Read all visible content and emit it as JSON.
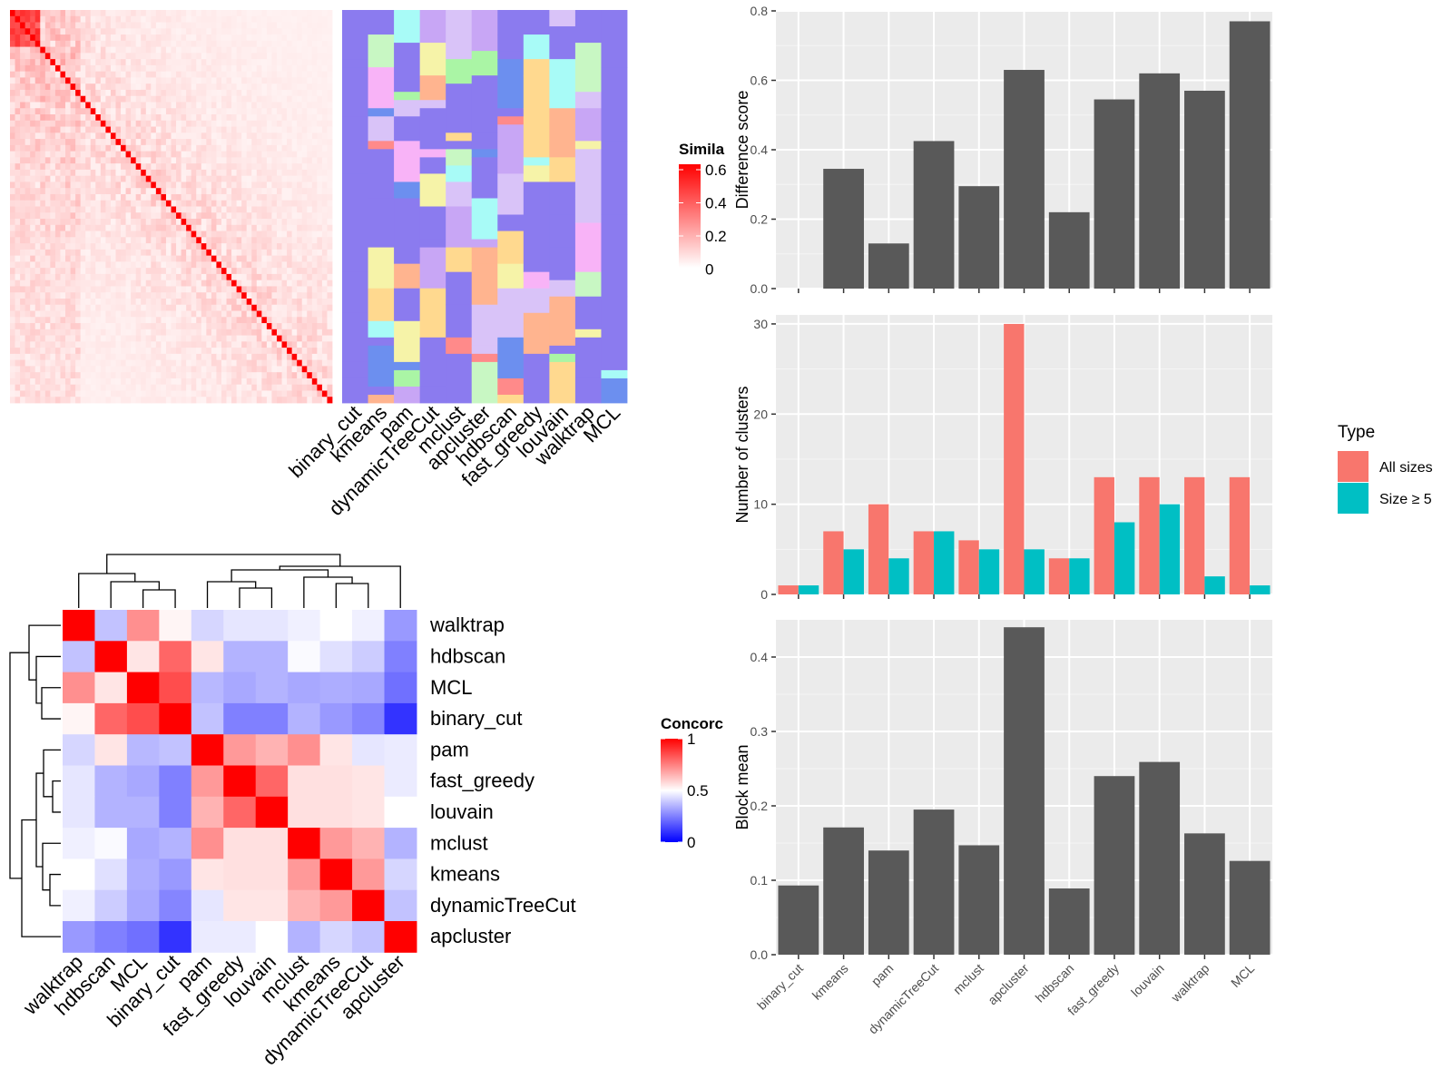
{
  "colors": {
    "panel_bg": "#EBEBEB",
    "grid_major": "#FFFFFF",
    "bar_fill": "#595959",
    "all_sizes": "#F8766D",
    "size_ge_5": "#00BFC4",
    "similarity_low": "#FFFFFF",
    "similarity_high": "#FF0000",
    "concordance_low": "#0000FF",
    "concordance_mid": "#FFFFFF",
    "concordance_high": "#FF0000",
    "default_cluster": "#8B7BEF"
  },
  "methods_bar_order": [
    "binary_cut",
    "kmeans",
    "pam",
    "dynamicTreeCut",
    "mclust",
    "apcluster",
    "hdbscan",
    "fast_greedy",
    "louvain",
    "walktrap",
    "MCL"
  ],
  "similarity_legend": {
    "title": "Simila",
    "ticks": [
      "0.6",
      "0.4",
      "0.2",
      "0"
    ]
  },
  "concordance_legend": {
    "title": "Concorc",
    "ticks": [
      "1",
      "0.5",
      "0"
    ]
  },
  "type_legend": {
    "title": "Type",
    "items": [
      "All sizes",
      "Size ≥ 5"
    ]
  },
  "chart_data": [
    {
      "type": "bar",
      "title": "",
      "ylabel": "Difference score",
      "xlabel": "",
      "categories": [
        "binary_cut",
        "kmeans",
        "pam",
        "dynamicTreeCut",
        "mclust",
        "apcluster",
        "hdbscan",
        "fast_greedy",
        "louvain",
        "walktrap",
        "MCL"
      ],
      "values": [
        0,
        0.345,
        0.13,
        0.425,
        0.295,
        0.63,
        0.22,
        0.545,
        0.62,
        0.57,
        0.77
      ],
      "ylim": [
        0,
        0.8
      ],
      "yticks": [
        "0.0",
        "0.2",
        "0.4",
        "0.6",
        "0.8"
      ],
      "grid": true
    },
    {
      "type": "bar",
      "title": "",
      "ylabel": "Number of clusters",
      "xlabel": "",
      "categories": [
        "binary_cut",
        "kmeans",
        "pam",
        "dynamicTreeCut",
        "mclust",
        "apcluster",
        "hdbscan",
        "fast_greedy",
        "louvain",
        "walktrap",
        "MCL"
      ],
      "series": [
        {
          "name": "All sizes",
          "values": [
            1,
            7,
            10,
            7,
            6,
            30,
            4,
            13,
            13,
            13,
            13
          ]
        },
        {
          "name": "Size ≥ 5",
          "values": [
            1,
            5,
            4,
            7,
            5,
            5,
            4,
            8,
            10,
            2,
            1
          ]
        }
      ],
      "ylim": [
        0,
        31
      ],
      "yticks": [
        "0",
        "10",
        "20",
        "30"
      ],
      "legend": "right",
      "grid": true
    },
    {
      "type": "bar",
      "title": "",
      "ylabel": "Block mean",
      "xlabel": "",
      "categories": [
        "binary_cut",
        "kmeans",
        "pam",
        "dynamicTreeCut",
        "mclust",
        "apcluster",
        "hdbscan",
        "fast_greedy",
        "louvain",
        "walktrap",
        "MCL"
      ],
      "values": [
        0.093,
        0.171,
        0.14,
        0.195,
        0.147,
        0.44,
        0.089,
        0.24,
        0.259,
        0.163,
        0.126
      ],
      "ylim": [
        0,
        0.45
      ],
      "yticks": [
        "0.0",
        "0.1",
        "0.2",
        "0.3",
        "0.4"
      ],
      "grid": true
    },
    {
      "type": "heatmap",
      "title": "",
      "legend_title": "Concorc",
      "rows": [
        "walktrap",
        "hdbscan",
        "MCL",
        "binary_cut",
        "pam",
        "fast_greedy",
        "louvain",
        "mclust",
        "kmeans",
        "dynamicTreeCut",
        "apcluster"
      ],
      "cols": [
        "walktrap",
        "hdbscan",
        "MCL",
        "binary_cut",
        "pam",
        "fast_greedy",
        "louvain",
        "mclust",
        "kmeans",
        "dynamicTreeCut",
        "apcluster"
      ],
      "values": [
        [
          1.0,
          0.38,
          0.72,
          0.52,
          0.42,
          0.45,
          0.45,
          0.47,
          0.5,
          0.47,
          0.3
        ],
        [
          0.38,
          1.0,
          0.55,
          0.8,
          0.55,
          0.35,
          0.35,
          0.49,
          0.44,
          0.4,
          0.25
        ],
        [
          0.72,
          0.55,
          1.0,
          0.85,
          0.36,
          0.33,
          0.35,
          0.33,
          0.34,
          0.33,
          0.22
        ],
        [
          0.52,
          0.8,
          0.85,
          1.0,
          0.38,
          0.25,
          0.25,
          0.35,
          0.3,
          0.26,
          0.1
        ],
        [
          0.42,
          0.55,
          0.36,
          0.38,
          1.0,
          0.7,
          0.65,
          0.72,
          0.55,
          0.45,
          0.46
        ],
        [
          0.45,
          0.35,
          0.33,
          0.25,
          0.7,
          1.0,
          0.8,
          0.56,
          0.56,
          0.55,
          0.46
        ],
        [
          0.45,
          0.35,
          0.35,
          0.25,
          0.65,
          0.8,
          1.0,
          0.56,
          0.56,
          0.55,
          0.5
        ],
        [
          0.47,
          0.49,
          0.33,
          0.35,
          0.72,
          0.56,
          0.56,
          1.0,
          0.7,
          0.65,
          0.35
        ],
        [
          0.5,
          0.44,
          0.34,
          0.3,
          0.55,
          0.56,
          0.56,
          0.7,
          1.0,
          0.7,
          0.42
        ],
        [
          0.47,
          0.4,
          0.33,
          0.26,
          0.45,
          0.55,
          0.55,
          0.65,
          0.7,
          1.0,
          0.38
        ],
        [
          0.3,
          0.25,
          0.22,
          0.1,
          0.46,
          0.46,
          0.5,
          0.35,
          0.42,
          0.38,
          1.0
        ]
      ],
      "range": [
        0,
        1
      ]
    },
    {
      "type": "heatmap",
      "title": "",
      "legend_title": "Simila",
      "column_labels": [
        "binary_cut",
        "kmeans",
        "pam",
        "dynamicTreeCut",
        "mclust",
        "apcluster",
        "hdbscan",
        "fast_greedy",
        "louvain",
        "walktrap",
        "MCL"
      ],
      "range": [
        0,
        0.6
      ]
    }
  ]
}
